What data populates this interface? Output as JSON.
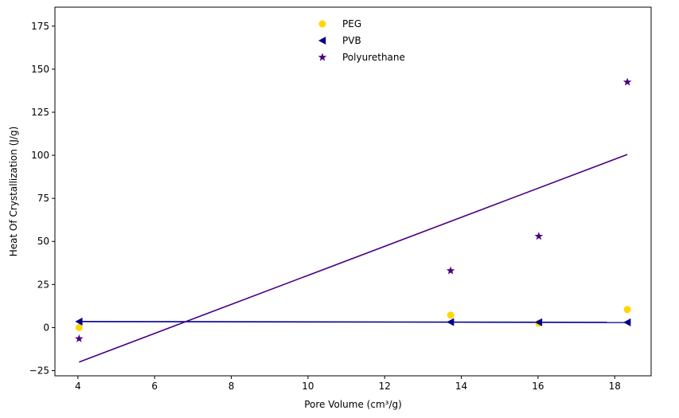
{
  "chart_data": {
    "type": "scatter",
    "title": "",
    "xlabel": "Pore Volume (cm³/g)",
    "ylabel": "Heat Of Crystallization (J/g)",
    "xlim": [
      3.4,
      18.95
    ],
    "ylim": [
      -28,
      186
    ],
    "xticks": [
      4,
      6,
      8,
      10,
      12,
      14,
      16,
      18
    ],
    "yticks": [
      -25,
      0,
      25,
      50,
      75,
      100,
      125,
      150,
      175
    ],
    "grid": false,
    "legend_position": "top-center",
    "series": [
      {
        "name": "PEG",
        "marker": "circle",
        "color": "#FFD700",
        "points": [
          [
            4.03,
            0
          ],
          [
            13.72,
            7.2
          ],
          [
            16.02,
            2.5
          ],
          [
            18.33,
            10.5
          ]
        ]
      },
      {
        "name": "PVB",
        "marker": "triangle-left",
        "color": "#00008B",
        "points": [
          [
            4.03,
            3.5
          ],
          [
            13.72,
            3.2
          ],
          [
            16.02,
            3.1
          ],
          [
            18.33,
            3.0
          ]
        ],
        "line": [
          [
            4.03,
            3.5
          ],
          [
            18.33,
            3.0
          ]
        ]
      },
      {
        "name": "Polyurethane",
        "marker": "star",
        "color": "#4B0082",
        "points": [
          [
            4.03,
            -6.5
          ],
          [
            13.72,
            33
          ],
          [
            16.02,
            53
          ],
          [
            18.33,
            142.5
          ]
        ],
        "line": [
          [
            4.03,
            -20
          ],
          [
            18.33,
            100.5
          ]
        ]
      }
    ]
  }
}
